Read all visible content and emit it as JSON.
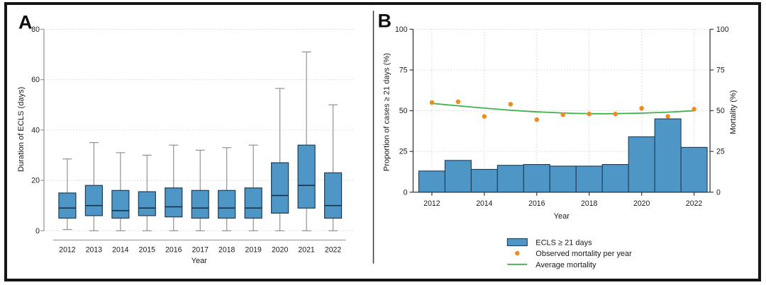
{
  "panels": {
    "a": {
      "label": "A"
    },
    "b": {
      "label": "B"
    }
  },
  "colors": {
    "box_bar_fill": "#4e96c6",
    "box_bar_stroke": "#1f3d57",
    "median_line": "#13324d",
    "whisker": "#8a8a8a",
    "orange_point": "#f08a1e",
    "green_line": "#3fb14c",
    "grid": "#d4d4d4",
    "axis_a": "#9a9a9a",
    "axis_b": "#3a3a3a",
    "text": "#1a1a1a",
    "frame": "#161616"
  },
  "chart_data": [
    {
      "type": "box",
      "panel": "A",
      "title": "",
      "xlabel": "Year",
      "ylabel": "Duration of ECLS (days)",
      "ylim": [
        0,
        80
      ],
      "yticks": [
        0,
        20,
        40,
        60,
        80
      ],
      "grid": "horizontal-dotted",
      "categories": [
        "2012",
        "2013",
        "2014",
        "2015",
        "2016",
        "2017",
        "2018",
        "2019",
        "2020",
        "2021",
        "2022"
      ],
      "boxes": [
        {
          "year": "2012",
          "whisker_low": 0.5,
          "q1": 5,
          "median": 9,
          "q3": 15,
          "whisker_high": 28.5
        },
        {
          "year": "2013",
          "whisker_low": 0,
          "q1": 6,
          "median": 10,
          "q3": 18,
          "whisker_high": 35
        },
        {
          "year": "2014",
          "whisker_low": 0,
          "q1": 5,
          "median": 8,
          "q3": 16,
          "whisker_high": 31
        },
        {
          "year": "2015",
          "whisker_low": 0,
          "q1": 6,
          "median": 9,
          "q3": 15.5,
          "whisker_high": 30
        },
        {
          "year": "2016",
          "whisker_low": 0,
          "q1": 5.5,
          "median": 9.5,
          "q3": 17,
          "whisker_high": 34
        },
        {
          "year": "2017",
          "whisker_low": 0,
          "q1": 5,
          "median": 9,
          "q3": 16,
          "whisker_high": 32
        },
        {
          "year": "2018",
          "whisker_low": 0,
          "q1": 5,
          "median": 9,
          "q3": 16,
          "whisker_high": 33
        },
        {
          "year": "2019",
          "whisker_low": 0,
          "q1": 5,
          "median": 9,
          "q3": 17,
          "whisker_high": 34
        },
        {
          "year": "2020",
          "whisker_low": 0,
          "q1": 7,
          "median": 14,
          "q3": 27,
          "whisker_high": 56.5
        },
        {
          "year": "2021",
          "whisker_low": 0,
          "q1": 9,
          "median": 18,
          "q3": 34,
          "whisker_high": 71
        },
        {
          "year": "2022",
          "whisker_low": 0,
          "q1": 5,
          "median": 10,
          "q3": 23,
          "whisker_high": 50
        }
      ]
    },
    {
      "type": "bar",
      "panel": "B",
      "title": "",
      "xlabel": "Year",
      "ylabel_left": "Proportion of cases ≥ 21 days (%)",
      "ylabel_right": "Mortality (%)",
      "ylim": [
        0,
        100
      ],
      "yticks": [
        0,
        25,
        50,
        75,
        100
      ],
      "xtick_labels": [
        "2012",
        "2014",
        "2016",
        "2018",
        "2020",
        "2022"
      ],
      "grid": "dotted-both",
      "categories": [
        "2012",
        "2013",
        "2014",
        "2015",
        "2016",
        "2017",
        "2018",
        "2019",
        "2020",
        "2021",
        "2022"
      ],
      "series": [
        {
          "name": "ECLS ≥ 21 days",
          "type": "bar",
          "axis": "left",
          "values": [
            13,
            19.5,
            14,
            16.5,
            17,
            16,
            16,
            17,
            34,
            45,
            27.5
          ]
        },
        {
          "name": "Observed mortality per year",
          "type": "scatter",
          "axis": "right",
          "values": [
            55,
            55.5,
            46.5,
            54,
            44.5,
            47.5,
            48,
            48,
            51.5,
            46.5,
            51
          ]
        },
        {
          "name": "Average mortality",
          "type": "line",
          "axis": "right",
          "values": [
            54.5,
            53.0,
            51.6,
            50.3,
            49.3,
            48.6,
            48.2,
            48.2,
            48.5,
            49.1,
            50.0
          ]
        }
      ],
      "legend": [
        {
          "marker": "bar",
          "label": "ECLS ≥ 21 days"
        },
        {
          "marker": "point",
          "label": "Observed mortality per year"
        },
        {
          "marker": "line",
          "label": "Average mortality"
        }
      ],
      "legend_position": "bottom"
    }
  ]
}
